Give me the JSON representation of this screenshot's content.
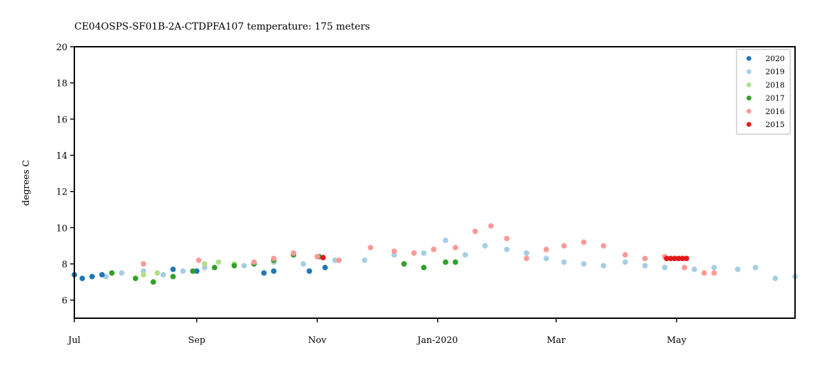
{
  "chart_data": {
    "type": "scatter",
    "title": "CE04OSPS-SF01B-2A-CTDPFA107 temperature: 175 meters",
    "xlabel": "",
    "ylabel": "degrees C",
    "ylim": [
      5,
      20
    ],
    "xlim": [
      "2019-07-01",
      "2020-06-30"
    ],
    "grid": false,
    "legend_position": "top-right",
    "y_ticks": [
      6,
      8,
      10,
      12,
      14,
      16,
      18,
      20
    ],
    "x_ticks": [
      {
        "date": "2019-07-01",
        "label": "Jul"
      },
      {
        "date": "2019-09-01",
        "label": "Sep"
      },
      {
        "date": "2019-11-01",
        "label": "Nov"
      },
      {
        "date": "2020-01-01",
        "label": "Jan-2020"
      },
      {
        "date": "2020-03-01",
        "label": "Mar"
      },
      {
        "date": "2020-05-01",
        "label": "May"
      }
    ],
    "series": [
      {
        "name": "2019",
        "color": "#a6cee3",
        "x": [
          "2019-07-17",
          "2019-07-25",
          "2019-08-05",
          "2019-08-15",
          "2019-08-25",
          "2019-09-05",
          "2019-09-25",
          "2019-10-10",
          "2019-10-25",
          "2019-11-10",
          "2019-11-25",
          "2019-12-10",
          "2019-12-25",
          "2020-01-05",
          "2020-01-15",
          "2020-01-25",
          "2020-02-05",
          "2020-02-15",
          "2020-02-25",
          "2020-03-05",
          "2020-03-15",
          "2020-03-25",
          "2020-04-05",
          "2020-04-15",
          "2020-04-25",
          "2020-05-10",
          "2020-05-20",
          "2020-06-01",
          "2020-06-10",
          "2020-06-20",
          "2020-06-30"
        ],
        "y": [
          7.3,
          7.5,
          7.6,
          7.4,
          7.6,
          7.8,
          7.9,
          8.1,
          8.0,
          8.2,
          8.2,
          8.5,
          8.6,
          9.3,
          8.5,
          9.0,
          8.8,
          8.6,
          8.3,
          8.1,
          8.0,
          7.9,
          8.1,
          7.9,
          7.8,
          7.7,
          7.8,
          7.7,
          7.8,
          7.2,
          7.3
        ]
      },
      {
        "name": "2020",
        "color": "#1f78b4",
        "x": [
          "2019-07-01",
          "2019-07-05",
          "2019-07-10",
          "2019-07-15",
          "2019-08-20",
          "2019-09-01",
          "2019-10-05",
          "2019-10-10",
          "2019-10-28",
          "2019-11-05"
        ],
        "y": [
          7.4,
          7.2,
          7.3,
          7.4,
          7.7,
          7.6,
          7.5,
          7.6,
          7.6,
          7.8
        ]
      },
      {
        "name": "2018",
        "color": "#b2df8a",
        "x": [
          "2019-08-05",
          "2019-08-12",
          "2019-08-20",
          "2019-09-05",
          "2019-09-12",
          "2019-09-20"
        ],
        "y": [
          7.4,
          7.5,
          7.3,
          8.0,
          8.1,
          8.0
        ]
      },
      {
        "name": "2017",
        "color": "#33a02c",
        "x": [
          "2019-07-20",
          "2019-08-01",
          "2019-08-10",
          "2019-08-20",
          "2019-08-30",
          "2019-09-10",
          "2019-09-20",
          "2019-09-30",
          "2019-10-10",
          "2019-10-20",
          "2019-11-02",
          "2019-12-15",
          "2019-12-25",
          "2020-01-05",
          "2020-01-10"
        ],
        "y": [
          7.5,
          7.2,
          7.0,
          7.3,
          7.6,
          7.8,
          7.9,
          8.0,
          8.2,
          8.5,
          8.4,
          8.0,
          7.8,
          8.1,
          8.1
        ]
      },
      {
        "name": "2016",
        "color": "#fb9a99",
        "x": [
          "2019-08-05",
          "2019-09-02",
          "2019-09-30",
          "2019-10-10",
          "2019-10-20",
          "2019-11-01",
          "2019-11-12",
          "2019-11-28",
          "2019-12-10",
          "2019-12-20",
          "2019-12-30",
          "2020-01-10",
          "2020-01-20",
          "2020-01-28",
          "2020-02-05",
          "2020-02-15",
          "2020-02-25",
          "2020-03-05",
          "2020-03-15",
          "2020-03-25",
          "2020-04-05",
          "2020-04-15",
          "2020-04-25",
          "2020-05-05",
          "2020-05-15",
          "2020-05-20"
        ],
        "y": [
          8.0,
          8.2,
          8.1,
          8.3,
          8.6,
          8.4,
          8.2,
          8.9,
          8.7,
          8.6,
          8.8,
          8.9,
          9.8,
          10.1,
          9.4,
          8.3,
          8.8,
          9.0,
          9.2,
          9.0,
          8.5,
          8.3,
          8.4,
          7.8,
          7.5,
          7.5
        ]
      },
      {
        "name": "2015",
        "color": "#e31a1c",
        "x": [
          "2019-11-04",
          "2020-04-26",
          "2020-04-28",
          "2020-04-30",
          "2020-05-02",
          "2020-05-04",
          "2020-05-06"
        ],
        "y": [
          8.35,
          8.3,
          8.3,
          8.3,
          8.3,
          8.3,
          8.3
        ]
      }
    ],
    "legend": [
      "2020",
      "2019",
      "2018",
      "2017",
      "2016",
      "2015"
    ]
  }
}
